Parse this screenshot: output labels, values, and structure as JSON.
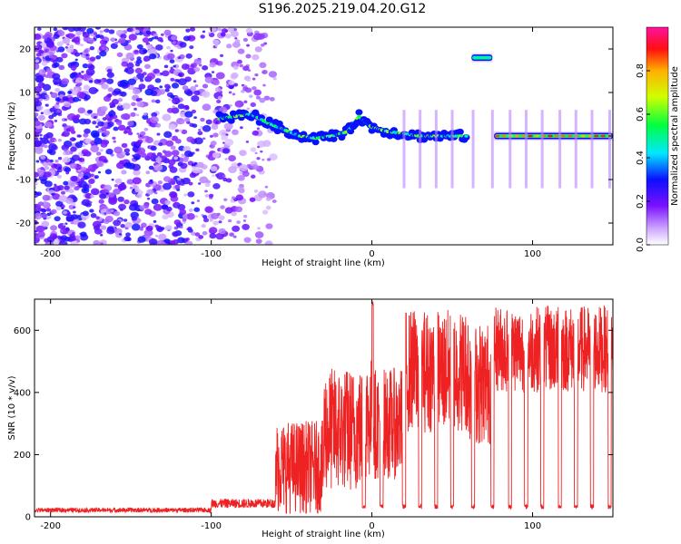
{
  "title": "S196.2025.219.04.20.G12",
  "chart_data": [
    {
      "type": "heatmap",
      "xlabel": "Height of straight line (km)",
      "ylabel": "Frequency (Hz)",
      "xlim": [
        -210,
        150
      ],
      "ylim": [
        -25,
        25
      ],
      "xticks": [
        -200,
        -100,
        0,
        100
      ],
      "yticks": [
        -20,
        -10,
        0,
        10,
        20
      ],
      "colorbar": {
        "label": "Normalized spectral amplitude",
        "range": [
          0,
          1
        ],
        "ticks": [
          "0.0",
          "0.2",
          "0.4",
          "0.6",
          "0.8"
        ],
        "tick_values": [
          0,
          0.2,
          0.4,
          0.6,
          0.8
        ],
        "colormap": "rainbow (white/violet low → blue → cyan → green → yellow → red → magenta high)"
      },
      "features": [
        {
          "label": "noise",
          "x_range": [
            -210,
            -60
          ],
          "freq_range": [
            -25,
            25
          ],
          "amplitude": 0.1
        },
        {
          "label": "trace",
          "points": [
            [
              -95,
              4
            ],
            [
              -85,
              4.5
            ],
            [
              -75,
              5
            ],
            [
              -65,
              3
            ],
            [
              -55,
              1.5
            ],
            [
              -45,
              0
            ],
            [
              -35,
              -0.5
            ],
            [
              -25,
              0
            ],
            [
              -15,
              1
            ],
            [
              -8,
              4.5
            ],
            [
              0,
              2
            ],
            [
              10,
              1
            ],
            [
              20,
              0.5
            ],
            [
              30,
              0
            ],
            [
              40,
              0
            ],
            [
              50,
              0
            ],
            [
              60,
              0
            ]
          ],
          "amplitude": 0.55
        },
        {
          "label": "trace",
          "x_range": [
            76,
            150
          ],
          "freq": 0,
          "amplitude": 0.9
        },
        {
          "label": "trace",
          "x_range": [
            62,
            75
          ],
          "freq": 18,
          "amplitude": 0.5
        }
      ]
    },
    {
      "type": "line",
      "xlabel": "Height of straight line (km)",
      "ylabel": "SNR (10 * v/v)",
      "xlim": [
        -210,
        150
      ],
      "ylim": [
        0,
        700
      ],
      "xticks": [
        -200,
        -100,
        0,
        100
      ],
      "yticks": [
        0,
        200,
        400,
        600
      ],
      "color": "#ee2222",
      "segments": [
        {
          "x": [
            -210,
            -100
          ],
          "level": 20,
          "spread": 15
        },
        {
          "x": [
            -100,
            -60
          ],
          "level": 40,
          "spread": 30
        },
        {
          "x": [
            -60,
            -30
          ],
          "level": 160,
          "spread": 150
        },
        {
          "x": [
            -30,
            -5
          ],
          "level": 280,
          "spread": 200
        },
        {
          "x": [
            -5,
            0
          ],
          "level": 320,
          "spread": 200
        },
        {
          "x": [
            0,
            1
          ],
          "level": 690,
          "spread": 10
        },
        {
          "x": [
            1,
            20
          ],
          "level": 300,
          "spread": 180
        },
        {
          "x": [
            20,
            60
          ],
          "level": 470,
          "spread": 200
        },
        {
          "x": [
            60,
            75
          ],
          "level": 430,
          "spread": 200
        },
        {
          "x": [
            75,
            150
          ],
          "level": 540,
          "spread": 140
        }
      ],
      "dips_x": [
        -5,
        6,
        20,
        30,
        40,
        50,
        63,
        75,
        86,
        96,
        106,
        117,
        127,
        137,
        148
      ],
      "dip_level": 25
    }
  ]
}
